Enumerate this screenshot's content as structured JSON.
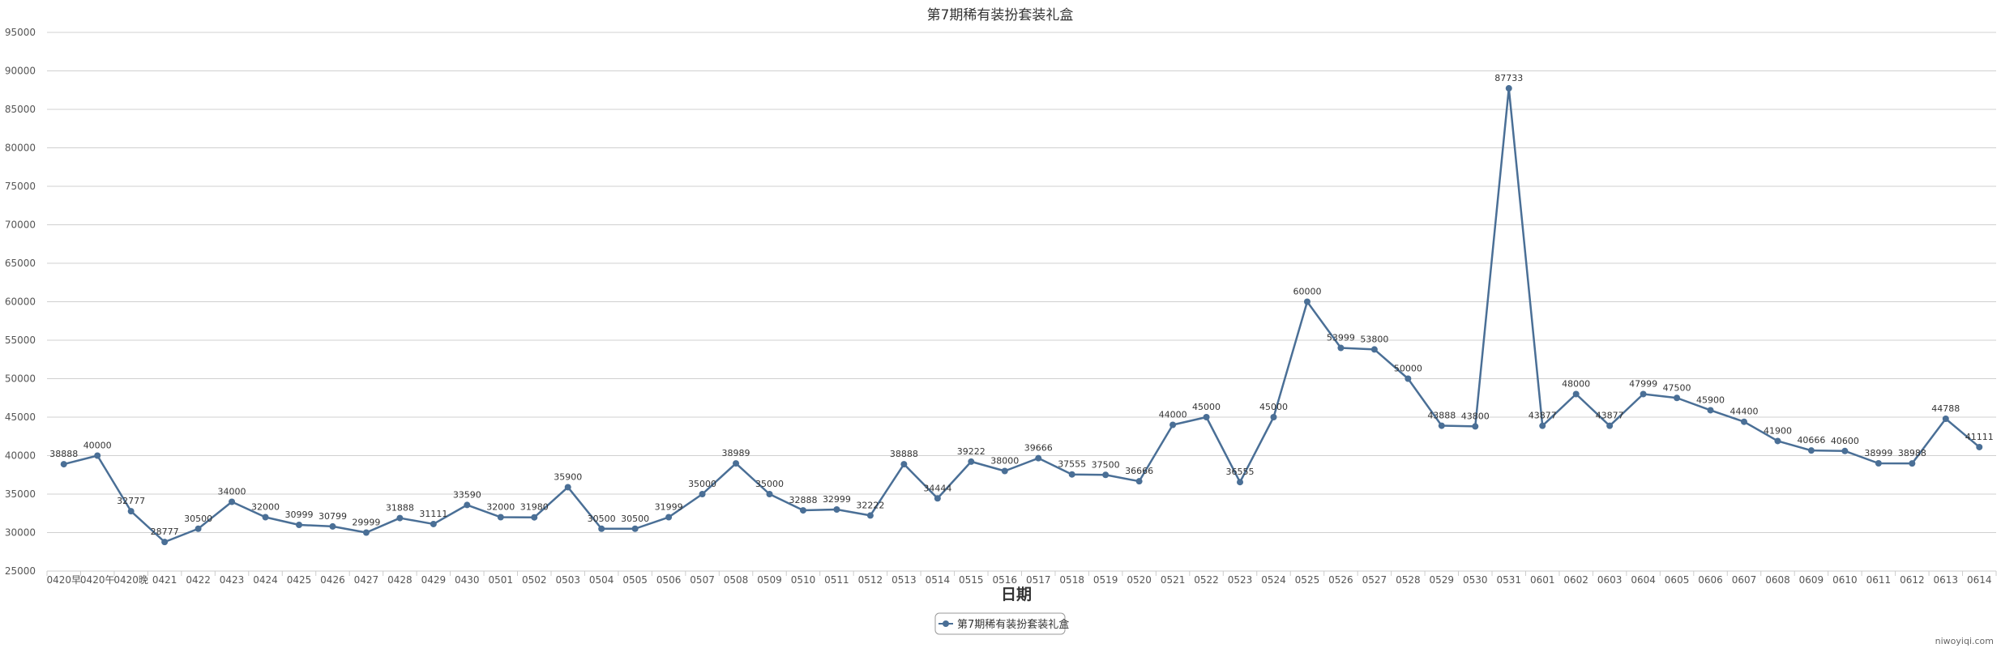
{
  "chart_data": {
    "type": "line",
    "title": "第7期稀有装扮套装礼盒",
    "xlabel": "日期",
    "ylabel": "",
    "ylim": [
      25000,
      95000
    ],
    "ytick_step": 5000,
    "grid": true,
    "legend_position": "bottom-center",
    "line_color": "#4a6f96",
    "categories": [
      "0420早",
      "0420午",
      "0420晚",
      "0421",
      "0422",
      "0423",
      "0424",
      "0425",
      "0426",
      "0427",
      "0428",
      "0429",
      "0430",
      "0501",
      "0502",
      "0503",
      "0504",
      "0505",
      "0506",
      "0507",
      "0508",
      "0509",
      "0510",
      "0511",
      "0512",
      "0513",
      "0514",
      "0515",
      "0516",
      "0517",
      "0518",
      "0519",
      "0520",
      "0521",
      "0522",
      "0523",
      "0524",
      "0525",
      "0526",
      "0527",
      "0528",
      "0529",
      "0530",
      "0531",
      "0601",
      "0602",
      "0603",
      "0604",
      "0605",
      "0606",
      "0607",
      "0608",
      "0609",
      "0610",
      "0611",
      "0612",
      "0613",
      "0614"
    ],
    "series": [
      {
        "name": "第7期稀有装扮套装礼盒",
        "values": [
          38888,
          40000,
          32777,
          28777,
          30500,
          34000,
          32000,
          30999,
          30799,
          29999,
          31888,
          31111,
          33590,
          32000,
          31980,
          35900,
          30500,
          30500,
          31999,
          35000,
          38989,
          35000,
          32888,
          32999,
          32222,
          38888,
          34444,
          39222,
          38000,
          39666,
          37555,
          37500,
          36666,
          44000,
          45000,
          36555,
          45000,
          60000,
          53999,
          53800,
          50000,
          43888,
          43800,
          87733,
          43877,
          48000,
          43877,
          47999,
          47500,
          45900,
          44400,
          41900,
          40666,
          40600,
          38999,
          38988,
          44788,
          41111
        ]
      }
    ]
  },
  "credit": "niwoyiqi.com"
}
